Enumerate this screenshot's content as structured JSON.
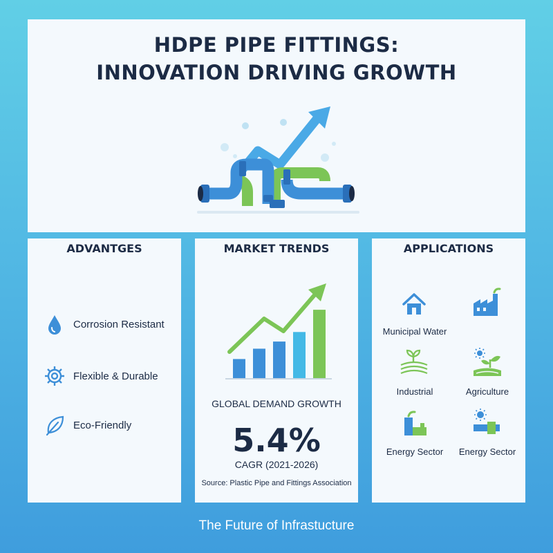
{
  "title": {
    "line1": "HDPE PIPE FITTINGS:",
    "line2": "INNOVATION DRIVING GROWTH"
  },
  "advantages": {
    "heading": "ADVANTGES",
    "items": [
      {
        "label": "Corrosion Resistant",
        "icon": "water-drop-icon"
      },
      {
        "label": "Flexible & Durable",
        "icon": "gear-icon"
      },
      {
        "label": "Eco-Friendly",
        "icon": "leaf-icon"
      }
    ]
  },
  "market_trends": {
    "heading": "MARKET TRENDS",
    "caption": "GLOBAL DEMAND GROWTH",
    "value": "5.4%",
    "period": "CAGR (2021-2026)",
    "source": "Source: Plastic Pipe and Fittings Association",
    "bar_levels": [
      0.24,
      0.37,
      0.46,
      0.58,
      0.86
    ],
    "colors": {
      "bar_blue": "#3d8fd8",
      "bar_light": "#44b9e6",
      "bar_green": "#7cc557",
      "arrow": "#7cc557"
    }
  },
  "applications": {
    "heading": "APPLICATIONS",
    "items": [
      {
        "label": "Municipal Water",
        "icon": "house-icon"
      },
      {
        "label": "",
        "icon": "factory-icon"
      },
      {
        "label": "Industrial",
        "icon": "sprout-field-icon"
      },
      {
        "label": "Agriculture",
        "icon": "sun-plant-icon"
      },
      {
        "label": "Energy Sector",
        "icon": "energy-plant-icon"
      },
      {
        "label": "Energy Sector",
        "icon": "solar-pipe-icon"
      }
    ]
  },
  "footer": "The Future of Infrastucture",
  "colors": {
    "navy": "#1c2b45",
    "blue": "#3d8fd8",
    "green": "#7cc557",
    "panel": "#f4f9fd"
  }
}
